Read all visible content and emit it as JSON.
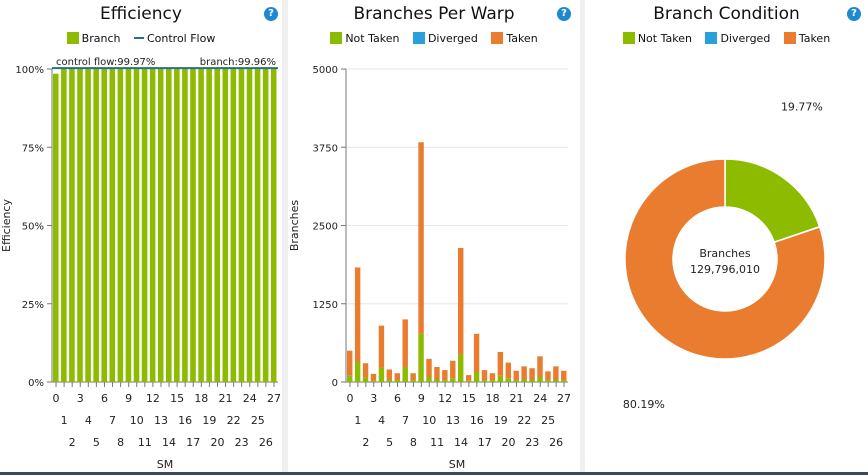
{
  "colors": {
    "branch": "#8cbb00",
    "control_flow": "#2a6f8a",
    "not_taken": "#8cbb00",
    "diverged": "#27a0dc",
    "taken": "#ea7c2f",
    "help": "#1e88d0"
  },
  "help_icon": "?",
  "chart_data": [
    {
      "type": "bar",
      "title": "Efficiency",
      "xlabel": "SM",
      "ylabel": "Efficiency",
      "ylim": [
        0,
        100
      ],
      "yticks": [
        "0%",
        "25%",
        "50%",
        "75%",
        "100%"
      ],
      "categories": [
        "0",
        "1",
        "2",
        "3",
        "4",
        "5",
        "6",
        "7",
        "8",
        "9",
        "10",
        "11",
        "12",
        "13",
        "14",
        "15",
        "16",
        "17",
        "18",
        "19",
        "20",
        "21",
        "22",
        "23",
        "24",
        "25",
        "26",
        "27"
      ],
      "legend": [
        "Branch",
        "Control Flow"
      ],
      "series": [
        {
          "name": "Branch",
          "values": [
            98.5,
            100,
            100,
            100,
            100,
            100,
            100,
            100,
            100,
            100,
            100,
            100,
            100,
            100,
            100,
            100,
            100,
            100,
            100,
            100,
            100,
            100,
            100,
            100,
            100,
            100,
            100,
            100
          ]
        }
      ],
      "reference_line": {
        "name": "Control Flow",
        "value": 99.97
      },
      "annotations": [
        "control flow:99.97%",
        "branch:99.96%"
      ]
    },
    {
      "type": "bar",
      "stacked": true,
      "title": "Branches Per Warp",
      "xlabel": "SM",
      "ylabel": "Branches",
      "ylim": [
        0,
        5000
      ],
      "yticks": [
        "0",
        "1250",
        "2500",
        "3750",
        "5000"
      ],
      "categories": [
        "0",
        "1",
        "2",
        "3",
        "4",
        "5",
        "6",
        "7",
        "8",
        "9",
        "10",
        "11",
        "12",
        "13",
        "14",
        "15",
        "16",
        "17",
        "18",
        "19",
        "20",
        "21",
        "22",
        "23",
        "24",
        "25",
        "26",
        "27"
      ],
      "legend": [
        "Not Taken",
        "Diverged",
        "Taken"
      ],
      "series": [
        {
          "name": "Not Taken",
          "values": [
            100,
            320,
            70,
            20,
            230,
            40,
            30,
            240,
            30,
            770,
            80,
            40,
            30,
            60,
            440,
            20,
            160,
            30,
            30,
            100,
            60,
            30,
            40,
            40,
            80,
            30,
            40,
            30
          ]
        },
        {
          "name": "Diverged",
          "values": [
            0,
            0,
            0,
            0,
            0,
            0,
            0,
            0,
            0,
            0,
            0,
            0,
            0,
            0,
            0,
            0,
            0,
            0,
            0,
            0,
            0,
            0,
            0,
            0,
            0,
            0,
            0,
            0
          ]
        },
        {
          "name": "Taken",
          "values": [
            400,
            1510,
            230,
            110,
            670,
            160,
            110,
            760,
            110,
            3060,
            290,
            200,
            160,
            280,
            1700,
            90,
            610,
            160,
            110,
            380,
            250,
            150,
            210,
            180,
            330,
            140,
            210,
            150
          ]
        }
      ]
    },
    {
      "type": "pie",
      "donut": true,
      "title": "Branch Condition",
      "legend": [
        "Not Taken",
        "Diverged",
        "Taken"
      ],
      "slices": [
        {
          "name": "Not Taken",
          "value": 19.77,
          "label": "19.77%"
        },
        {
          "name": "Diverged",
          "value": 0.04,
          "label": ""
        },
        {
          "name": "Taken",
          "value": 80.19,
          "label": "80.19%"
        }
      ],
      "center_label": "Branches",
      "center_value": "129,796,010"
    }
  ]
}
